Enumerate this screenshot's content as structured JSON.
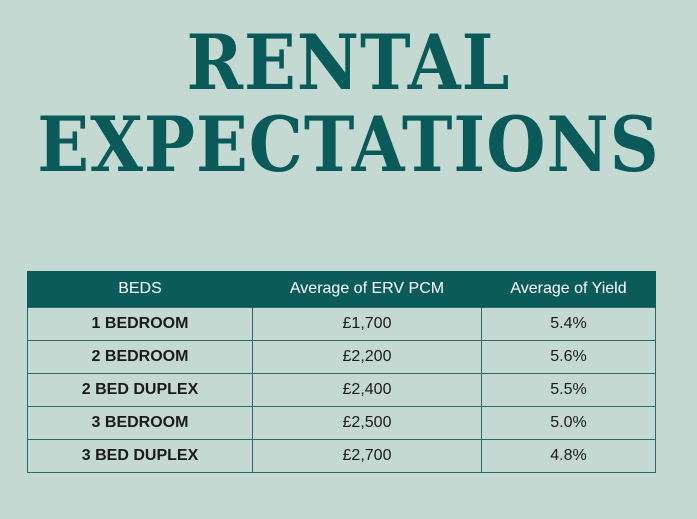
{
  "title": {
    "line1": "RENTAL",
    "line2": "EXPECTATIONS"
  },
  "table": {
    "headers": [
      "BEDS",
      "Average of ERV PCM",
      "Average of Yield"
    ],
    "rows": [
      {
        "beds": "1 BEDROOM",
        "erv": "£1,700",
        "yield": "5.4%"
      },
      {
        "beds": "2 BEDROOM",
        "erv": "£2,200",
        "yield": "5.6%"
      },
      {
        "beds": "2 BED DUPLEX",
        "erv": "£2,400",
        "yield": "5.5%"
      },
      {
        "beds": "3 BEDROOM",
        "erv": "£2,500",
        "yield": "5.0%"
      },
      {
        "beds": "3 BED DUPLEX",
        "erv": "£2,700",
        "yield": "4.8%"
      }
    ]
  },
  "colors": {
    "background": "#c5d9d3",
    "accent": "#0a5a5a",
    "header_bg": "#0c5b5b",
    "header_text": "#ffffff"
  }
}
